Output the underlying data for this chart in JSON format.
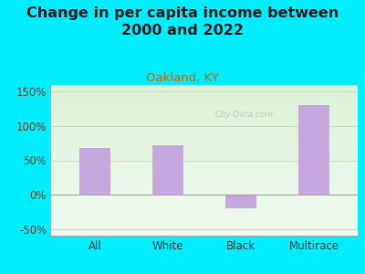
{
  "title": "Change in per capita income between\n2000 and 2022",
  "subtitle": "Oakland, KY",
  "categories": [
    "All",
    "White",
    "Black",
    "Multirace"
  ],
  "values": [
    68,
    72,
    -20,
    130
  ],
  "bar_color": "#c4a8de",
  "title_fontsize": 11.5,
  "subtitle_fontsize": 9.5,
  "subtitle_color": "#cc6600",
  "title_color": "#1a1a1a",
  "outer_bg_color": "#00eeff",
  "plot_bg_top": "#ddf0d8",
  "plot_bg_bottom": "#f0faf0",
  "ylim": [
    -60,
    160
  ],
  "yticks": [
    -50,
    0,
    50,
    100,
    150
  ],
  "ytick_labels": [
    "-50%",
    "0%",
    "50%",
    "100%",
    "150%"
  ],
  "tick_color": "#7a3a1a",
  "xticklabel_color": "#3a3a3a",
  "grid_color": "#c8dfc0",
  "watermark": "City-Data.com"
}
